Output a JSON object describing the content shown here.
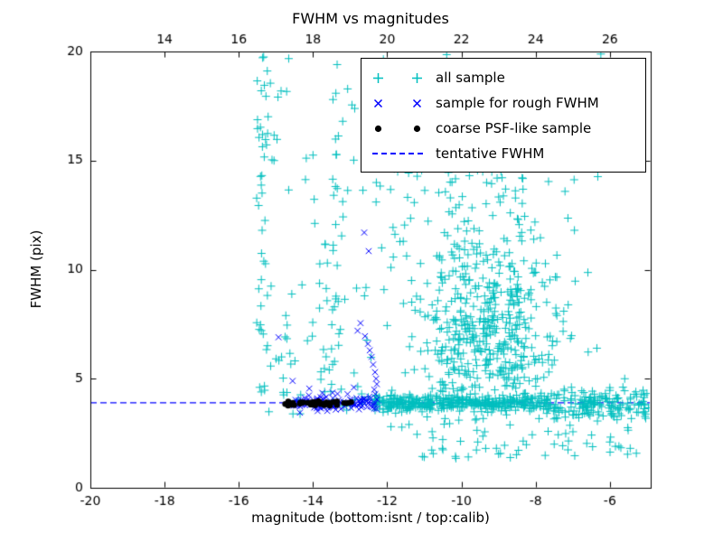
{
  "chart_data": {
    "type": "scatter",
    "title": "FWHM vs magnitudes",
    "xlabel": "magnitude (bottom:isnt / top:calib)",
    "ylabel": "FWHM (pix)",
    "xlim": [
      -20,
      -4.9
    ],
    "ylim": [
      0,
      20
    ],
    "x_ticks_bottom": [
      -20,
      -18,
      -16,
      -14,
      -12,
      -10,
      -8,
      -6
    ],
    "x_ticks_top": [
      14,
      16,
      18,
      20,
      22,
      24,
      26
    ],
    "top_axis_offset": 32,
    "y_ticks": [
      0,
      5,
      10,
      15,
      20
    ],
    "grid": false,
    "legend_position": "upper right",
    "background": "#ffffff",
    "fwhm_line": {
      "label": "tentative FWHM",
      "y": 3.9,
      "color": "#0000ff",
      "style": "dashed"
    },
    "series": [
      {
        "name": "all sample",
        "marker": "plus",
        "color": "#00bfbf",
        "points": [
          [
            -15.33,
            19.75
          ],
          [
            -13.35,
            19.4
          ],
          [
            -12.95,
            17.55
          ],
          [
            -13.2,
            16.8
          ],
          [
            -15.05,
            15.0
          ],
          [
            -14.0,
            15.25
          ],
          [
            -11.6,
            14.9
          ],
          [
            -12.3,
            13.1
          ],
          [
            -12.15,
            11.0
          ],
          [
            -11.9,
            10.1
          ],
          [
            -6.35,
            6.4
          ],
          [
            -5.6,
            5.0
          ],
          [
            -5.3,
            4.4
          ],
          [
            -6.0,
            2.1
          ],
          [
            -5.85,
            1.9
          ],
          [
            -10.15,
            1.35
          ],
          [
            -9.0,
            1.55
          ],
          [
            -7.5,
            2.0
          ],
          [
            -5.15,
            3.85
          ],
          [
            -5.05,
            3.8
          ]
        ],
        "clusters": [
          {
            "seed": 11,
            "count": 380,
            "x": {
              "dist": "uniform",
              "min": -12.35,
              "max": -7.6
            },
            "y": {
              "dist": "normal",
              "mean": 3.88,
              "sd": 0.18,
              "min": 3.3,
              "max": 4.6
            }
          },
          {
            "seed": 12,
            "count": 150,
            "x": {
              "dist": "uniform",
              "min": -7.6,
              "max": -4.95
            },
            "y": {
              "dist": "normal",
              "mean": 3.85,
              "sd": 0.32,
              "min": 2.6,
              "max": 5.2
            }
          },
          {
            "seed": 13,
            "count": 430,
            "x": {
              "dist": "normal",
              "mean": -9.4,
              "sd": 1.05,
              "min": -12.2,
              "max": -6.3
            },
            "y": {
              "dist": "normal",
              "mean": 6.9,
              "sd": 1.9,
              "min": 4.2,
              "max": 12.8
            }
          },
          {
            "seed": 14,
            "count": 130,
            "x": {
              "dist": "normal",
              "mean": -9.8,
              "sd": 1.3,
              "min": -12.5,
              "max": -6.2
            },
            "y": {
              "dist": "uniform",
              "min": 9.5,
              "max": 16.5
            }
          },
          {
            "seed": 15,
            "count": 60,
            "x": {
              "dist": "uniform",
              "min": -15.6,
              "max": -6.0
            },
            "y": {
              "dist": "uniform",
              "min": 13.5,
              "max": 20.0
            }
          },
          {
            "seed": 16,
            "count": 45,
            "x": {
              "dist": "normal",
              "mean": -15.35,
              "sd": 0.12,
              "min": -15.65,
              "max": -15.05
            },
            "y": {
              "dist": "uniform",
              "min": 4.3,
              "max": 19.8
            }
          },
          {
            "seed": 17,
            "count": 30,
            "x": {
              "dist": "normal",
              "mean": -13.55,
              "sd": 0.3,
              "min": -14.3,
              "max": -12.9
            },
            "y": {
              "dist": "uniform",
              "min": 4.5,
              "max": 16.5
            }
          },
          {
            "seed": 18,
            "count": 70,
            "x": {
              "dist": "uniform",
              "min": -12.2,
              "max": -5.1
            },
            "y": {
              "dist": "uniform",
              "min": 1.3,
              "max": 3.4
            }
          },
          {
            "seed": 19,
            "count": 40,
            "x": {
              "dist": "uniform",
              "min": -15.0,
              "max": -12.4
            },
            "y": {
              "dist": "uniform",
              "min": 4.3,
              "max": 9.5
            }
          },
          {
            "seed": 20,
            "count": 25,
            "x": {
              "dist": "uniform",
              "min": -15.2,
              "max": -12.4
            },
            "y": {
              "dist": "normal",
              "mean": 3.9,
              "sd": 0.3,
              "min": 3.2,
              "max": 4.6
            }
          }
        ]
      },
      {
        "name": "sample for rough FWHM",
        "marker": "x",
        "color": "#0000ff",
        "points": [
          [
            -12.62,
            11.7
          ],
          [
            -12.5,
            10.85
          ],
          [
            -12.72,
            7.55
          ],
          [
            -12.8,
            7.2
          ],
          [
            -12.6,
            6.95
          ],
          [
            -12.52,
            6.6
          ],
          [
            -12.47,
            6.3
          ],
          [
            -12.42,
            6.0
          ],
          [
            -12.38,
            5.65
          ],
          [
            -12.33,
            5.3
          ],
          [
            -12.3,
            5.0
          ],
          [
            -12.28,
            4.75
          ],
          [
            -14.93,
            6.9
          ],
          [
            -14.55,
            4.9
          ],
          [
            -14.1,
            4.55
          ],
          [
            -13.75,
            4.35
          ],
          [
            -12.9,
            4.6
          ],
          [
            -12.35,
            4.5
          ]
        ],
        "clusters": [
          {
            "seed": 31,
            "count": 115,
            "x": {
              "dist": "uniform",
              "min": -14.55,
              "max": -12.25
            },
            "y": {
              "dist": "normal",
              "mean": 3.9,
              "sd": 0.16,
              "min": 3.4,
              "max": 4.5
            }
          }
        ]
      },
      {
        "name": "coarse PSF-like sample",
        "marker": "dot",
        "color": "#000000",
        "points": [
          [
            -14.75,
            3.84
          ],
          [
            -14.62,
            3.8
          ],
          [
            -12.97,
            3.93
          ]
        ],
        "clusters": [
          {
            "seed": 41,
            "count": 40,
            "x": {
              "dist": "normal",
              "mean": -13.8,
              "sd": 0.45,
              "min": -14.72,
              "max": -12.92
            },
            "y": {
              "dist": "normal",
              "mean": 3.87,
              "sd": 0.06,
              "min": 3.72,
              "max": 4.02
            }
          }
        ]
      }
    ]
  }
}
